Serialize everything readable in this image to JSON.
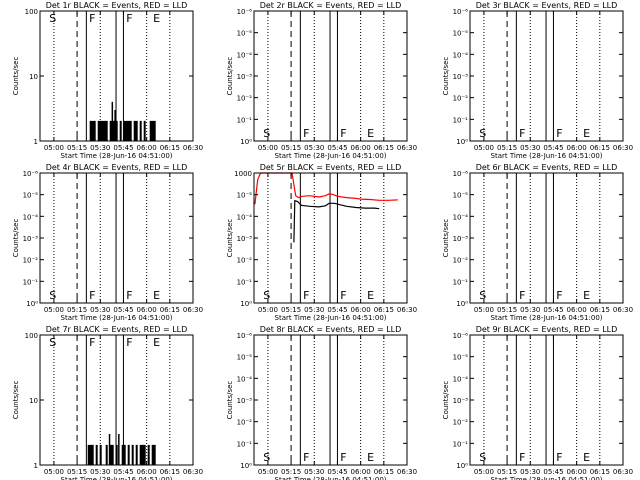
{
  "figure": {
    "x_tick_labels": [
      "05:00",
      "05:15",
      "05:30",
      "05:45",
      "06:00",
      "06:15",
      "06:30"
    ],
    "xlabel": "Start Time (28-Jun-16 04:51:00)",
    "ylabel": "Counts/sec"
  },
  "colors": {
    "events": "#000000",
    "lld": "#ff0000",
    "background": "#ffffff"
  },
  "chart_data": [
    {
      "type": "line",
      "title": "Det 1r BLACK = Events, RED = LLD",
      "xlim": [
        4.85,
        6.5
      ],
      "ylim": [
        1,
        100
      ],
      "yscale": "log",
      "y_tick_labels": [
        "1",
        "10",
        "100"
      ],
      "vlines": {
        "dashed": [
          5.25
        ],
        "solid": [
          5.35,
          5.67,
          5.75
        ],
        "dotted": [
          5.0,
          5.5,
          6.0,
          6.25
        ]
      },
      "markers": [
        {
          "label": "S",
          "x": 4.95
        },
        {
          "label": "F",
          "x": 5.38
        },
        {
          "label": "F",
          "x": 5.78
        },
        {
          "label": "E",
          "x": 6.07
        }
      ],
      "series": [
        {
          "color": "black",
          "style": "spikes",
          "x_range": [
            5.37,
            6.1
          ],
          "base": 1,
          "level": 2,
          "peaks": [
            [
              5.63,
              4
            ],
            [
              5.66,
              3
            ]
          ]
        }
      ]
    },
    {
      "type": "line",
      "title": "Det 2r BLACK = Events, RED = LLD",
      "xlim": [
        4.85,
        6.5
      ],
      "ylim": [
        1,
        1000000
      ],
      "yscale": "log",
      "y_tick_labels": [
        "10⁰",
        "10⁻¹",
        "10⁻²",
        "10⁻³",
        "10⁻⁴",
        "10⁻⁵",
        "10⁻⁶"
      ],
      "vlines": {
        "dashed": [
          5.25
        ],
        "solid": [
          5.35,
          5.67,
          5.75
        ],
        "dotted": [
          5.0,
          5.5,
          6.0,
          6.25
        ]
      },
      "markers": [
        {
          "label": "S",
          "x": 4.95
        },
        {
          "label": "F",
          "x": 5.38
        },
        {
          "label": "F",
          "x": 5.78
        },
        {
          "label": "E",
          "x": 6.07
        }
      ],
      "series": []
    },
    {
      "type": "line",
      "title": "Det 3r BLACK = Events, RED = LLD",
      "xlim": [
        4.85,
        6.5
      ],
      "ylim": [
        1,
        1000000
      ],
      "yscale": "log",
      "y_tick_labels": [
        "10⁰",
        "10⁻¹",
        "10⁻²",
        "10⁻³",
        "10⁻⁴",
        "10⁻⁵",
        "10⁻⁶"
      ],
      "vlines": {
        "dashed": [
          5.25
        ],
        "solid": [
          5.35,
          5.67,
          5.75
        ],
        "dotted": [
          5.0,
          5.5,
          6.0,
          6.25
        ]
      },
      "markers": [
        {
          "label": "S",
          "x": 4.95
        },
        {
          "label": "F",
          "x": 5.38
        },
        {
          "label": "F",
          "x": 5.78
        },
        {
          "label": "E",
          "x": 6.07
        }
      ],
      "series": []
    },
    {
      "type": "line",
      "title": "Det 4r BLACK = Events, RED = LLD",
      "xlim": [
        4.85,
        6.5
      ],
      "ylim": [
        1,
        1000000
      ],
      "yscale": "log",
      "y_tick_labels": [
        "10⁰",
        "10⁻¹",
        "10⁻²",
        "10⁻³",
        "10⁻⁴",
        "10⁻⁵",
        "10⁻⁶"
      ],
      "vlines": {
        "dashed": [
          5.25
        ],
        "solid": [
          5.35,
          5.67,
          5.75
        ],
        "dotted": [
          5.0,
          5.5,
          6.0,
          6.25
        ]
      },
      "markers": [
        {
          "label": "S",
          "x": 4.95
        },
        {
          "label": "F",
          "x": 5.38
        },
        {
          "label": "F",
          "x": 5.78
        },
        {
          "label": "E",
          "x": 6.07
        }
      ],
      "series": []
    },
    {
      "type": "line",
      "title": "Det 5r BLACK = Events, RED = LLD",
      "xlim": [
        4.85,
        6.5
      ],
      "ylim": [
        1,
        1000
      ],
      "yscale": "log",
      "y_tick_labels": [
        "10⁰",
        "10⁻¹",
        "10⁻²",
        "10⁻³",
        "10⁻⁴",
        "10⁻⁵",
        "1000"
      ],
      "vlines": {
        "dashed": [
          5.25
        ],
        "solid": [
          5.35,
          5.67,
          5.75
        ],
        "dotted": [
          5.0,
          5.5,
          6.0,
          6.25
        ]
      },
      "markers": [
        {
          "label": "S",
          "x": 4.95
        },
        {
          "label": "F",
          "x": 5.38
        },
        {
          "label": "F",
          "x": 5.78
        },
        {
          "label": "E",
          "x": 6.07
        }
      ],
      "series": [
        {
          "color": "red",
          "style": "line",
          "points": [
            [
              4.86,
              190
            ],
            [
              4.89,
              700
            ],
            [
              4.92,
              1000
            ],
            [
              5.26,
              1000
            ],
            [
              5.3,
              300
            ],
            [
              5.33,
              270
            ],
            [
              5.37,
              290
            ],
            [
              5.45,
              300
            ],
            [
              5.55,
              280
            ],
            [
              5.62,
              300
            ],
            [
              5.66,
              330
            ],
            [
              5.7,
              320
            ],
            [
              5.75,
              290
            ],
            [
              5.85,
              270
            ],
            [
              5.95,
              260
            ],
            [
              6.0,
              250
            ],
            [
              6.1,
              245
            ],
            [
              6.2,
              235
            ],
            [
              6.3,
              235
            ],
            [
              6.4,
              240
            ]
          ]
        },
        {
          "color": "black",
          "style": "line",
          "points": [
            [
              5.28,
              25
            ],
            [
              5.29,
              230
            ],
            [
              5.32,
              220
            ],
            [
              5.36,
              180
            ],
            [
              5.45,
              170
            ],
            [
              5.55,
              165
            ],
            [
              5.62,
              175
            ],
            [
              5.66,
              200
            ],
            [
              5.72,
              200
            ],
            [
              5.78,
              185
            ],
            [
              5.85,
              170
            ],
            [
              5.95,
              160
            ],
            [
              6.05,
              155
            ],
            [
              6.15,
              155
            ],
            [
              6.2,
              150
            ]
          ]
        }
      ]
    },
    {
      "type": "line",
      "title": "Det 6r BLACK = Events, RED = LLD",
      "xlim": [
        4.85,
        6.5
      ],
      "ylim": [
        1,
        1000000
      ],
      "yscale": "log",
      "y_tick_labels": [
        "10⁰",
        "10⁻¹",
        "10⁻²",
        "10⁻³",
        "10⁻⁴",
        "10⁻⁵",
        "10⁻⁶"
      ],
      "vlines": {
        "dashed": [
          5.25
        ],
        "solid": [
          5.35,
          5.67,
          5.75
        ],
        "dotted": [
          5.0,
          5.5,
          6.0,
          6.25
        ]
      },
      "markers": [
        {
          "label": "S",
          "x": 4.95
        },
        {
          "label": "F",
          "x": 5.38
        },
        {
          "label": "F",
          "x": 5.78
        },
        {
          "label": "E",
          "x": 6.07
        }
      ],
      "series": []
    },
    {
      "type": "line",
      "title": "Det 7r BLACK = Events, RED = LLD",
      "xlim": [
        4.85,
        6.5
      ],
      "ylim": [
        1,
        100
      ],
      "yscale": "log",
      "y_tick_labels": [
        "1",
        "10",
        "100"
      ],
      "vlines": {
        "dashed": [
          5.25
        ],
        "solid": [
          5.35,
          5.67,
          5.75
        ],
        "dotted": [
          5.0,
          5.5,
          6.0,
          6.25
        ]
      },
      "markers": [
        {
          "label": "S",
          "x": 4.95
        },
        {
          "label": "F",
          "x": 5.38
        },
        {
          "label": "F",
          "x": 5.78
        },
        {
          "label": "E",
          "x": 6.07
        }
      ],
      "series": [
        {
          "color": "black",
          "style": "spikes",
          "x_range": [
            5.37,
            6.1
          ],
          "base": 1,
          "level": 2,
          "peaks": [
            [
              5.6,
              3
            ],
            [
              5.7,
              3
            ]
          ]
        }
      ]
    },
    {
      "type": "line",
      "title": "Det 8r BLACK = Events, RED = LLD",
      "xlim": [
        4.85,
        6.5
      ],
      "ylim": [
        1,
        1000000
      ],
      "yscale": "log",
      "y_tick_labels": [
        "10⁰",
        "10⁻¹",
        "10⁻²",
        "10⁻³",
        "10⁻⁴",
        "10⁻⁵",
        "10⁻⁶"
      ],
      "vlines": {
        "dashed": [
          5.25
        ],
        "solid": [
          5.35,
          5.67,
          5.75
        ],
        "dotted": [
          5.0,
          5.5,
          6.0,
          6.25
        ]
      },
      "markers": [
        {
          "label": "S",
          "x": 4.95
        },
        {
          "label": "F",
          "x": 5.38
        },
        {
          "label": "F",
          "x": 5.78
        },
        {
          "label": "E",
          "x": 6.07
        }
      ],
      "series": []
    },
    {
      "type": "line",
      "title": "Det 9r BLACK = Events, RED = LLD",
      "xlim": [
        4.85,
        6.5
      ],
      "ylim": [
        1,
        1000000
      ],
      "yscale": "log",
      "y_tick_labels": [
        "10⁰",
        "10⁻¹",
        "10⁻²",
        "10⁻³",
        "10⁻⁴",
        "10⁻⁵",
        "10⁻⁶"
      ],
      "vlines": {
        "dashed": [
          5.25
        ],
        "solid": [
          5.35,
          5.67,
          5.75
        ],
        "dotted": [
          5.0,
          5.5,
          6.0,
          6.25
        ]
      },
      "markers": [
        {
          "label": "S",
          "x": 4.95
        },
        {
          "label": "F",
          "x": 5.38
        },
        {
          "label": "F",
          "x": 5.78
        },
        {
          "label": "E",
          "x": 6.07
        }
      ],
      "series": []
    }
  ]
}
